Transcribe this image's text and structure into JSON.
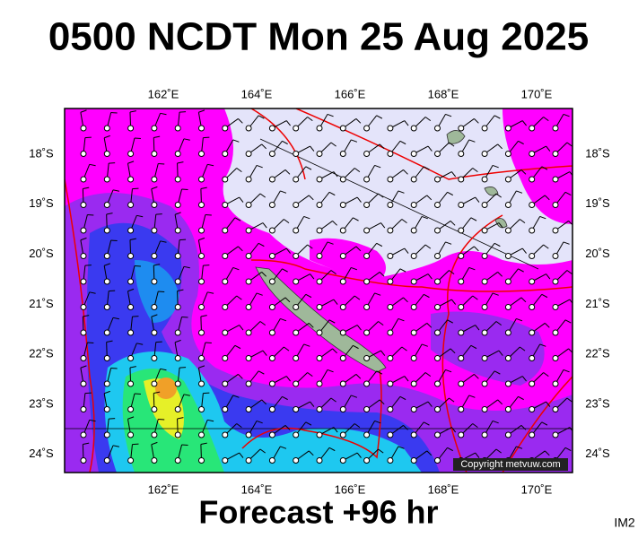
{
  "header": {
    "title": "0500 NCDT Mon 25 Aug 2025"
  },
  "map": {
    "longitude_labels": [
      "162˚E",
      "164˚E",
      "166˚E",
      "168˚E",
      "170˚E"
    ],
    "latitude_labels": [
      "18˚S",
      "19˚S",
      "20˚S",
      "21˚S",
      "22˚S",
      "23˚S",
      "24˚S"
    ],
    "copyright": "Copyright metvuw.com"
  },
  "footer": {
    "forecast": "Forecast +96 hr",
    "image_id": "IM2"
  }
}
